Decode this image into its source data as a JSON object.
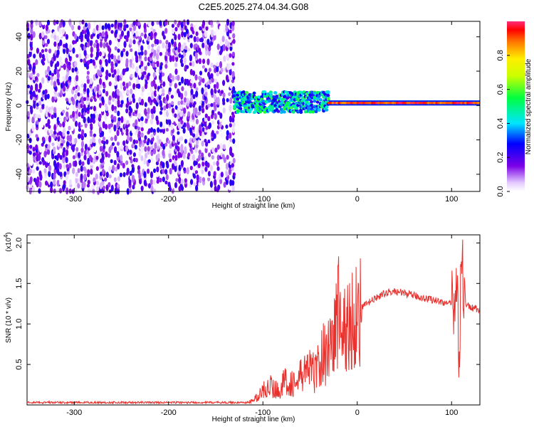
{
  "title": "C2E5.2025.274.04.34.G08",
  "chart_data": [
    {
      "type": "heatmap",
      "xlabel": "Height of straight line (km)",
      "ylabel": "Frequency (Hz)",
      "xlim": [
        -350,
        130
      ],
      "ylim": [
        -50,
        49
      ],
      "xticks": [
        -300,
        -200,
        -100,
        0,
        100
      ],
      "yticks": [
        -40,
        -20,
        0,
        20,
        40
      ],
      "colorbar": {
        "label": "Normalized spectral amplitude",
        "range": [
          0,
          1
        ],
        "ticks": [
          0.0,
          0.2,
          0.4,
          0.6,
          0.8
        ],
        "tick_labels": [
          "0.0",
          "0.2",
          "0.4",
          "0.6",
          "0.8"
        ]
      },
      "regions": [
        {
          "description": "noise",
          "x_range": [
            -350,
            -130
          ],
          "amplitude_range": [
            0.0,
            0.25
          ]
        },
        {
          "description": "signal-band",
          "x_range": [
            -130,
            -30
          ],
          "freq_center": 2,
          "freq_halfwidth": 6,
          "amplitude_range": [
            0.2,
            0.6
          ]
        },
        {
          "description": "tone",
          "x_range": [
            -30,
            130
          ],
          "freq_center": 1.5,
          "freq_halfwidth": 1.5,
          "amplitude_range": [
            0.85,
            1.0
          ]
        }
      ]
    },
    {
      "type": "line",
      "xlabel": "Height of straight line (km)",
      "ylabel": "SNR (10 * v/v)",
      "y_multiplier": "(x10",
      "y_multiplier_exp": "4",
      "y_multiplier_close": ")",
      "xlim": [
        -350,
        130
      ],
      "ylim": [
        0,
        21000
      ],
      "xticks": [
        -300,
        -200,
        -100,
        0,
        100
      ],
      "yticks": [
        5000,
        10000,
        15000,
        20000
      ],
      "ytick_labels": [
        "0.5",
        "1.0",
        "1.5",
        "2.0"
      ],
      "color": "#e8312d",
      "series": [
        {
          "x": [
            -350,
            -300,
            -250,
            -200,
            -150,
            -115,
            -105,
            -95,
            -85,
            -75,
            -65,
            -55,
            -45,
            -35,
            -25,
            -20,
            -15,
            -10,
            -5,
            0,
            10,
            20,
            30,
            40,
            50,
            60,
            70,
            80,
            90,
            100,
            104,
            106,
            108,
            110,
            115,
            120,
            130
          ],
          "values": [
            300,
            300,
            300,
            300,
            300,
            300,
            1000,
            2500,
            1800,
            3000,
            2500,
            4500,
            4000,
            6500,
            8000,
            12000,
            9000,
            9500,
            10500,
            11500,
            12500,
            13200,
            13800,
            14000,
            13800,
            13500,
            13200,
            13000,
            12700,
            12400,
            12000,
            19000,
            3000,
            18000,
            12500,
            12000,
            11800
          ]
        }
      ]
    }
  ]
}
